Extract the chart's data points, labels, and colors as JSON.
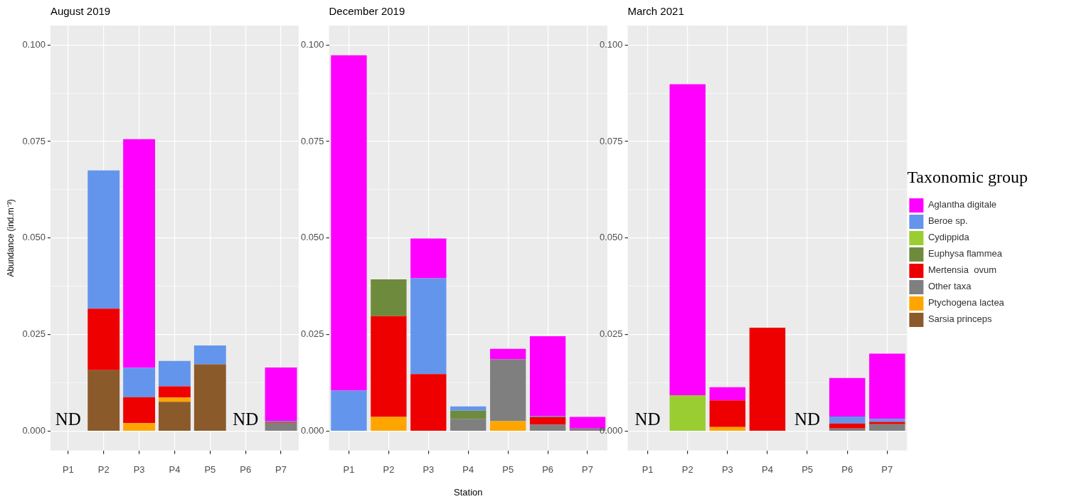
{
  "chart_data": [
    {
      "type": "bar",
      "title": "August 2019",
      "ylabel": "Abundance (ind.m⁻³)",
      "categories": [
        "P1",
        "P2",
        "P3",
        "P4",
        "P5",
        "P6",
        "P7"
      ],
      "stacked": true,
      "grid": true,
      "ylim": [
        -0.005,
        0.105
      ],
      "yticks": [
        {
          "value": 0,
          "label": "0.000"
        },
        {
          "value": 0.0125,
          "label": null
        },
        {
          "value": 0.025,
          "label": "0.025"
        },
        {
          "value": 0.0375,
          "label": null
        },
        {
          "value": 0.05,
          "label": "0.050"
        },
        {
          "value": 0.0625,
          "label": null
        },
        {
          "value": 0.075,
          "label": "0.075"
        },
        {
          "value": 0.0875,
          "label": null
        },
        {
          "value": 0.1,
          "label": "0.100"
        }
      ],
      "series": [
        {
          "color": "#8b5a2b",
          "values": [
            null,
            0.0158,
            null,
            0.0076,
            0.0173,
            null,
            null
          ]
        },
        {
          "color": "#ffa500",
          "values": [
            null,
            null,
            0.0021,
            0.0011,
            null,
            null,
            null
          ]
        },
        {
          "color": "#7f7f7f",
          "values": [
            null,
            null,
            null,
            null,
            null,
            null,
            0.0022
          ]
        },
        {
          "color": "#ee0000",
          "values": [
            null,
            0.0159,
            0.0067,
            0.0029,
            null,
            null,
            0.0002
          ]
        },
        {
          "color": "#6495ed",
          "values": [
            null,
            0.0358,
            0.0076,
            0.0066,
            0.0049,
            null,
            0.0003
          ]
        },
        {
          "color": "#ff00ff",
          "values": [
            null,
            null,
            0.0592,
            null,
            null,
            null,
            0.0138
          ]
        }
      ],
      "annotations": [
        "ND",
        "ND"
      ]
    },
    {
      "type": "bar",
      "title": "December 2019",
      "xlabel": "Station",
      "categories": [
        "P1",
        "P2",
        "P3",
        "P4",
        "P5",
        "P6",
        "P7"
      ],
      "stacked": true,
      "grid": true,
      "ylim": [
        -0.005,
        0.105
      ],
      "yticks": [
        {
          "value": 0,
          "label": "0.000"
        },
        {
          "value": 0.0125,
          "label": null
        },
        {
          "value": 0.025,
          "label": "0.025"
        },
        {
          "value": 0.0375,
          "label": null
        },
        {
          "value": 0.05,
          "label": "0.050"
        },
        {
          "value": 0.0625,
          "label": null
        },
        {
          "value": 0.075,
          "label": "0.075"
        },
        {
          "value": 0.0875,
          "label": null
        },
        {
          "value": 0.1,
          "label": "0.100"
        }
      ],
      "series": [
        {
          "color": "#ffa500",
          "values": [
            null,
            0.0037,
            null,
            null,
            0.0026,
            null,
            null
          ]
        },
        {
          "color": "#7f7f7f",
          "values": [
            null,
            null,
            null,
            0.0032,
            0.016,
            0.0017,
            0.0007
          ]
        },
        {
          "color": "#ee0000",
          "values": [
            null,
            0.0261,
            0.0148,
            null,
            null,
            0.002,
            null
          ]
        },
        {
          "color": "#6e8b3d",
          "values": [
            null,
            0.0095,
            null,
            0.0021,
            null,
            null,
            null
          ]
        },
        {
          "color": "#6495ed",
          "values": [
            0.0105,
            null,
            0.0248,
            0.0011,
            null,
            0.0003,
            null
          ]
        },
        {
          "color": "#ff00ff",
          "values": [
            0.0868,
            null,
            0.0103,
            null,
            0.0027,
            0.0206,
            0.003
          ]
        }
      ]
    },
    {
      "type": "bar",
      "title": "March 2021",
      "categories": [
        "P1",
        "P2",
        "P3",
        "P4",
        "P5",
        "P6",
        "P7"
      ],
      "stacked": true,
      "grid": true,
      "legend": "right",
      "legend_title": "Taxonomic group",
      "ylim": [
        -0.005,
        0.105
      ],
      "yticks": [
        {
          "value": 0,
          "label": "0.000"
        },
        {
          "value": 0.0125,
          "label": null
        },
        {
          "value": 0.025,
          "label": "0.025"
        },
        {
          "value": 0.0375,
          "label": null
        },
        {
          "value": 0.05,
          "label": "0.050"
        },
        {
          "value": 0.0625,
          "label": null
        },
        {
          "value": 0.075,
          "label": "0.075"
        },
        {
          "value": 0.0875,
          "label": null
        },
        {
          "value": 0.1,
          "label": "0.100"
        }
      ],
      "series": [
        {
          "name": "Sarsia princeps",
          "color": "#8b5a2b",
          "values": [
            null,
            null,
            null,
            null,
            null,
            null,
            null
          ]
        },
        {
          "name": "Ptychogena lactea",
          "color": "#ffa500",
          "values": [
            null,
            null,
            0.0011,
            null,
            null,
            null,
            null
          ]
        },
        {
          "name": "Other taxa",
          "color": "#7f7f7f",
          "values": [
            null,
            null,
            null,
            null,
            null,
            0.0007,
            0.0018
          ]
        },
        {
          "name": "Mertensia  ovum",
          "color": "#ee0000",
          "values": [
            null,
            null,
            0.0069,
            0.0268,
            null,
            0.0013,
            0.0006
          ]
        },
        {
          "name": "Euphysa flammea",
          "color": "#6e8b3d",
          "values": [
            null,
            null,
            null,
            null,
            null,
            null,
            null
          ]
        },
        {
          "name": "Cydippida",
          "color": "#9acd32",
          "values": [
            null,
            0.0093,
            null,
            null,
            null,
            null,
            null
          ]
        },
        {
          "name": "Beroe sp.",
          "color": "#6495ed",
          "values": [
            null,
            null,
            null,
            null,
            null,
            0.0018,
            0.0008
          ]
        },
        {
          "name": "Aglantha digitale",
          "color": "#ff00ff",
          "values": [
            null,
            0.0805,
            0.0034,
            null,
            null,
            0.01,
            0.0169
          ]
        }
      ],
      "annotations": [
        "ND",
        "ND"
      ]
    }
  ]
}
